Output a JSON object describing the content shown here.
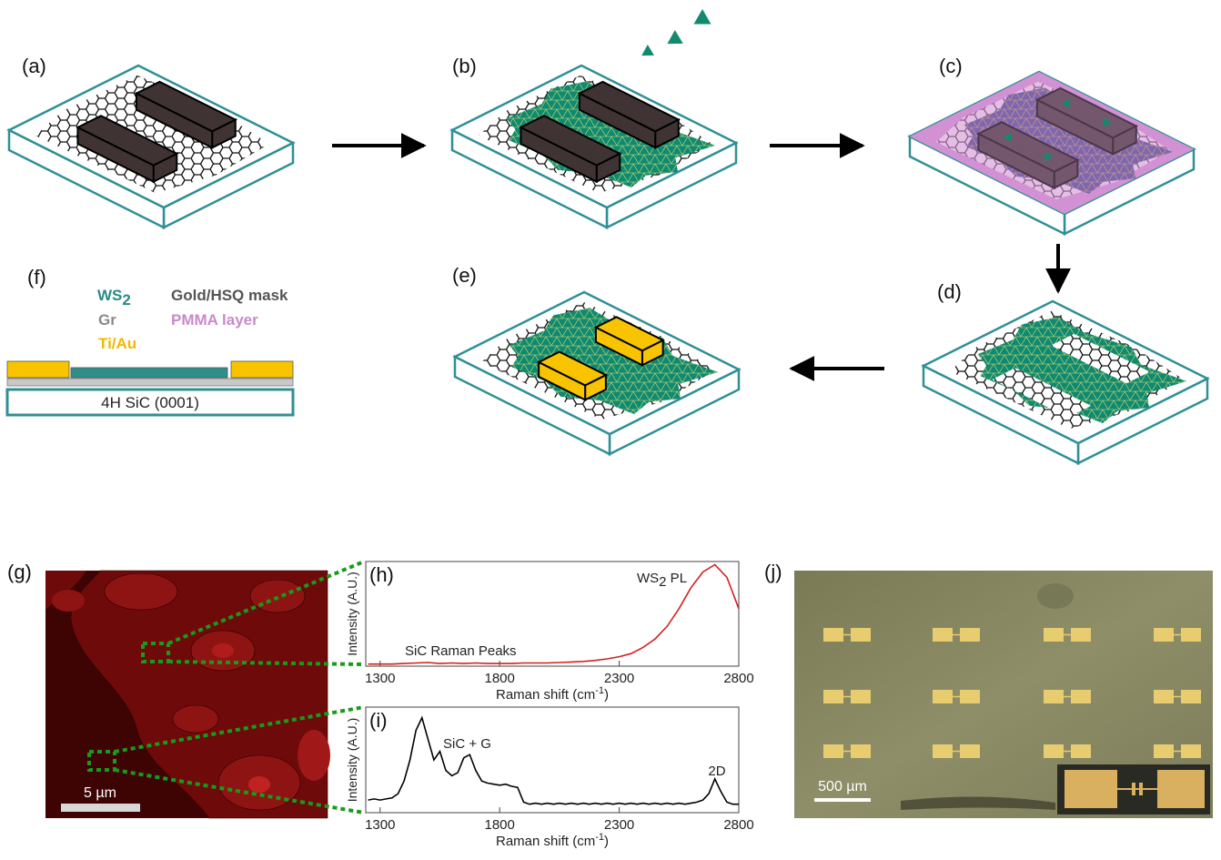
{
  "panels": {
    "a": "(a)",
    "b": "(b)",
    "c": "(c)",
    "d": "(d)",
    "e": "(e)",
    "f": "(f)",
    "g": "(g)",
    "j": "(j)"
  },
  "legend": {
    "ws2": {
      "text": "WS",
      "sub": "2"
    },
    "mask": "Gold/HSQ mask",
    "gr": "Gr",
    "pmma": "PMMA layer",
    "tiau": "Ti/Au"
  },
  "substrate": "4H SiC (0001)",
  "scale_bars": {
    "g": "5 µm",
    "j": "500 µm"
  },
  "chart_data": [
    {
      "type": "line",
      "label": "(h)",
      "ylabel": "Intensity (A.U.)",
      "xlabel": {
        "text": "Raman shift (cm",
        "sup": "-1",
        "tail": ")"
      },
      "xlim": [
        1240,
        2800
      ],
      "ylim": [
        0,
        1
      ],
      "xticks": [
        1300,
        1800,
        2300,
        2800
      ],
      "annotations": [
        {
          "text": "WS",
          "sub": "2",
          "tail": " PL"
        },
        {
          "text": "SiC Raman Peaks"
        }
      ],
      "x": [
        1250,
        1300,
        1350,
        1400,
        1450,
        1500,
        1550,
        1600,
        1650,
        1700,
        1750,
        1800,
        1850,
        1900,
        1950,
        2000,
        2050,
        2100,
        2150,
        2200,
        2250,
        2300,
        2350,
        2400,
        2450,
        2500,
        2550,
        2600,
        2650,
        2700,
        2750,
        2800
      ],
      "series": [
        {
          "color": "#d42020",
          "values": [
            0.02,
            0.02,
            0.02,
            0.025,
            0.03,
            0.035,
            0.025,
            0.03,
            0.025,
            0.03,
            0.025,
            0.025,
            0.025,
            0.03,
            0.03,
            0.03,
            0.035,
            0.04,
            0.045,
            0.055,
            0.07,
            0.09,
            0.12,
            0.18,
            0.26,
            0.38,
            0.55,
            0.75,
            0.9,
            0.97,
            0.85,
            0.55
          ]
        }
      ]
    },
    {
      "type": "line",
      "label": "(i)",
      "ylabel": "Intensity (A.U.)",
      "xlabel": {
        "text": "Raman shift (cm",
        "sup": "-1",
        "tail": ")"
      },
      "xlim": [
        1240,
        2800
      ],
      "ylim": [
        0,
        1
      ],
      "xticks": [
        1300,
        1800,
        2300,
        2800
      ],
      "annotations": [
        {
          "text": "SiC + G"
        },
        {
          "text": "2D"
        }
      ],
      "x": [
        1250,
        1275,
        1300,
        1325,
        1350,
        1375,
        1400,
        1425,
        1450,
        1475,
        1500,
        1525,
        1550,
        1575,
        1600,
        1625,
        1650,
        1675,
        1700,
        1725,
        1750,
        1775,
        1800,
        1825,
        1850,
        1875,
        1900,
        1925,
        1950,
        1975,
        2000,
        2025,
        2050,
        2075,
        2100,
        2125,
        2150,
        2175,
        2200,
        2225,
        2250,
        2275,
        2300,
        2325,
        2350,
        2375,
        2400,
        2425,
        2450,
        2475,
        2500,
        2525,
        2550,
        2575,
        2600,
        2625,
        2650,
        2675,
        2700,
        2725,
        2750,
        2775,
        2800
      ],
      "series": [
        {
          "color": "#000000",
          "values": [
            0.12,
            0.13,
            0.12,
            0.13,
            0.14,
            0.18,
            0.3,
            0.5,
            0.78,
            0.9,
            0.7,
            0.5,
            0.58,
            0.4,
            0.35,
            0.38,
            0.52,
            0.55,
            0.4,
            0.3,
            0.28,
            0.27,
            0.26,
            0.27,
            0.25,
            0.24,
            0.1,
            0.08,
            0.09,
            0.08,
            0.09,
            0.08,
            0.09,
            0.08,
            0.09,
            0.08,
            0.09,
            0.08,
            0.09,
            0.08,
            0.09,
            0.08,
            0.09,
            0.08,
            0.09,
            0.08,
            0.09,
            0.08,
            0.09,
            0.08,
            0.09,
            0.08,
            0.09,
            0.08,
            0.09,
            0.1,
            0.12,
            0.18,
            0.32,
            0.2,
            0.1,
            0.08,
            0.08
          ]
        }
      ]
    }
  ]
}
